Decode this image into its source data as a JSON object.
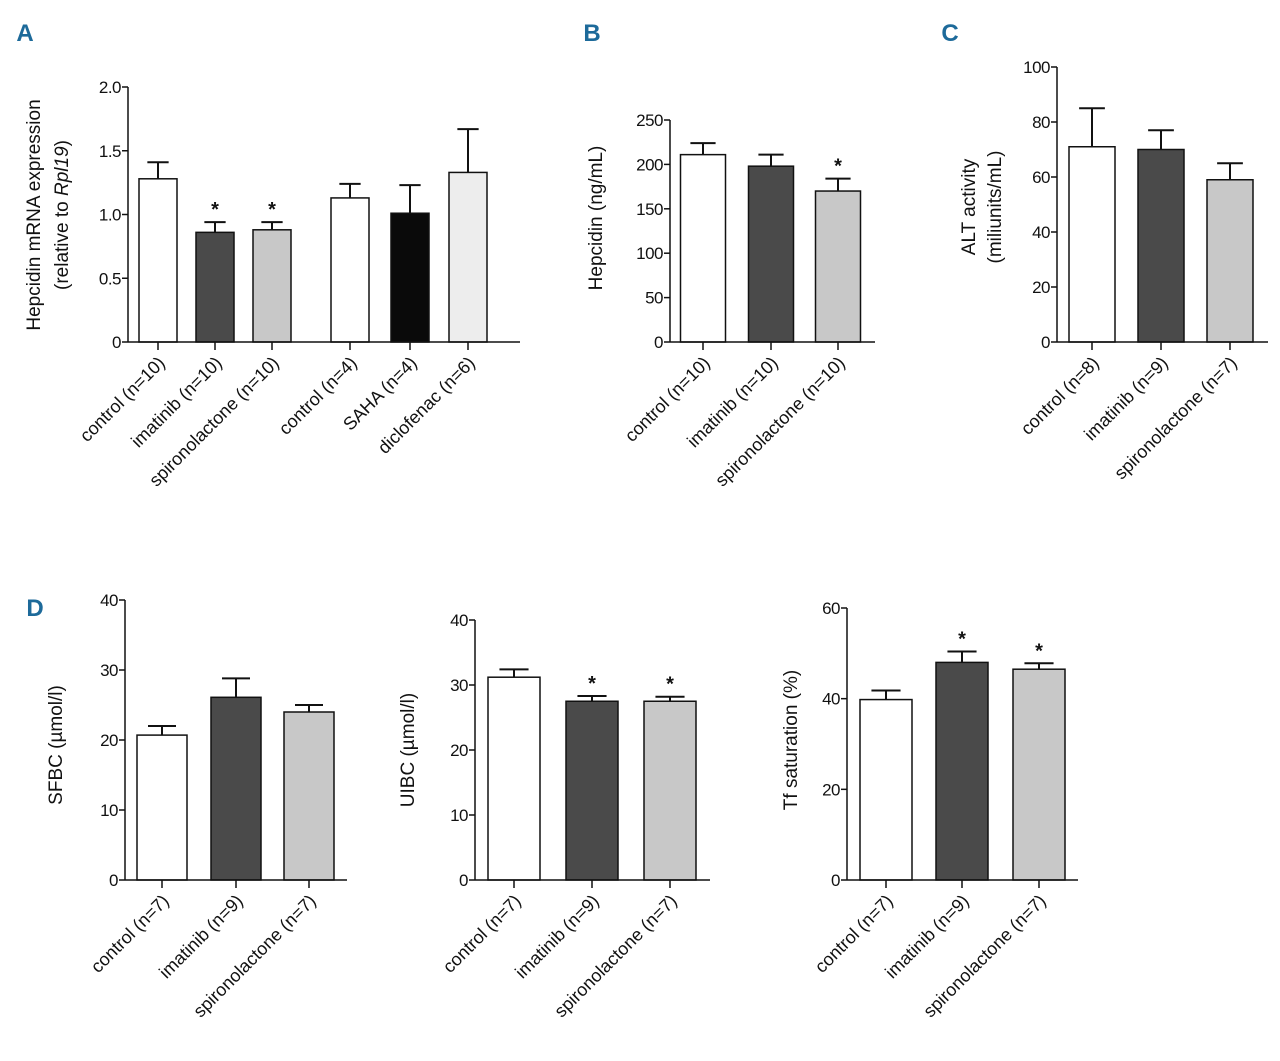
{
  "figure": {
    "panel_color": "#1d6a9a"
  },
  "chart_data": [
    {
      "type": "bar",
      "panel": "A",
      "ylabel": [
        "Hepcidin mRNA expression",
        "(relative to Rpl19)"
      ],
      "ylabel_italic_part": "Rpl19",
      "ylim": [
        0,
        2.0
      ],
      "yticks": [
        "0",
        "0.5",
        "1.0",
        "1.5",
        "2.0"
      ],
      "ytick_values": [
        0,
        0.5,
        1.0,
        1.5,
        2.0
      ],
      "categories": [
        "control (n=10)",
        "imatinib (n=10)",
        "spironolactone (n=10)",
        "control (n=4)",
        "SAHA (n=4)",
        "diclofenac (n=6)"
      ],
      "values": [
        1.28,
        0.86,
        0.88,
        1.13,
        1.01,
        1.33
      ],
      "errors": [
        0.13,
        0.08,
        0.06,
        0.11,
        0.22,
        0.34
      ],
      "significant": [
        false,
        true,
        true,
        false,
        false,
        false
      ],
      "significance_marker": "*",
      "colors": [
        "#ffffff",
        "#4a4a4a",
        "#c8c8c8",
        "#ffffff",
        "#0a0a0a",
        "#ededed"
      ]
    },
    {
      "type": "bar",
      "panel": "B",
      "ylabel": [
        "Hepcidin (ng/mL)"
      ],
      "ylim": [
        0,
        250
      ],
      "yticks": [
        "0",
        "50",
        "100",
        "150",
        "200",
        "250"
      ],
      "ytick_values": [
        0,
        50,
        100,
        150,
        200,
        250
      ],
      "categories": [
        "control (n=10)",
        "imatinib (n=10)",
        "spironolactone (n=10)"
      ],
      "values": [
        211,
        198,
        170
      ],
      "errors": [
        13,
        13,
        14
      ],
      "significant": [
        false,
        false,
        true
      ],
      "significance_marker": "*",
      "colors": [
        "#ffffff",
        "#4a4a4a",
        "#c8c8c8"
      ]
    },
    {
      "type": "bar",
      "panel": "C",
      "ylabel": [
        "ALT activity",
        "(miliunits/mL)"
      ],
      "ylim": [
        0,
        100
      ],
      "yticks": [
        "0",
        "20",
        "40",
        "60",
        "80",
        "100"
      ],
      "ytick_values": [
        0,
        20,
        40,
        60,
        80,
        100
      ],
      "categories": [
        "control (n=8)",
        "imatinib (n=9)",
        "spironolactone (n=7)"
      ],
      "values": [
        71,
        70,
        59
      ],
      "errors": [
        14,
        7,
        6
      ],
      "significant": [
        false,
        false,
        false
      ],
      "significance_marker": "*",
      "colors": [
        "#ffffff",
        "#4a4a4a",
        "#c8c8c8"
      ]
    },
    {
      "type": "bar",
      "panel": "D",
      "ylabel": [
        "SFBC (µmol/l)"
      ],
      "ylim": [
        0,
        40
      ],
      "yticks": [
        "0",
        "10",
        "20",
        "30",
        "40"
      ],
      "ytick_values": [
        0,
        10,
        20,
        30,
        40
      ],
      "categories": [
        "control (n=7)",
        "imatinib (n=9)",
        "spironolactone (n=7)"
      ],
      "values": [
        20.7,
        26.1,
        24.0
      ],
      "errors": [
        1.3,
        2.7,
        1.0
      ],
      "significant": [
        false,
        false,
        false
      ],
      "significance_marker": "*",
      "colors": [
        "#ffffff",
        "#4a4a4a",
        "#c8c8c8"
      ]
    },
    {
      "type": "bar",
      "panel": "",
      "ylabel": [
        "UIBC (µmol/l)"
      ],
      "ylim": [
        0,
        40
      ],
      "yticks": [
        "0",
        "10",
        "20",
        "30",
        "40"
      ],
      "ytick_values": [
        0,
        10,
        20,
        30,
        40
      ],
      "categories": [
        "control (n=7)",
        "imatinib (n=9)",
        "spironolactone (n=7)"
      ],
      "values": [
        31.2,
        27.5,
        27.5
      ],
      "errors": [
        1.2,
        0.8,
        0.7
      ],
      "significant": [
        false,
        true,
        true
      ],
      "significance_marker": "*",
      "colors": [
        "#ffffff",
        "#4a4a4a",
        "#c8c8c8"
      ]
    },
    {
      "type": "bar",
      "panel": "",
      "ylabel": [
        "Tf saturation (%)"
      ],
      "ylim": [
        0,
        60
      ],
      "yticks": [
        "0",
        "20",
        "40",
        "60"
      ],
      "ytick_values": [
        0,
        20,
        40,
        60
      ],
      "categories": [
        "control (n=7)",
        "imatinib (n=9)",
        "spironolactone (n=7)"
      ],
      "values": [
        39.8,
        48.0,
        46.5
      ],
      "errors": [
        2.0,
        2.4,
        1.3
      ],
      "significant": [
        false,
        true,
        true
      ],
      "significance_marker": "*",
      "colors": [
        "#ffffff",
        "#4a4a4a",
        "#c8c8c8"
      ]
    }
  ]
}
